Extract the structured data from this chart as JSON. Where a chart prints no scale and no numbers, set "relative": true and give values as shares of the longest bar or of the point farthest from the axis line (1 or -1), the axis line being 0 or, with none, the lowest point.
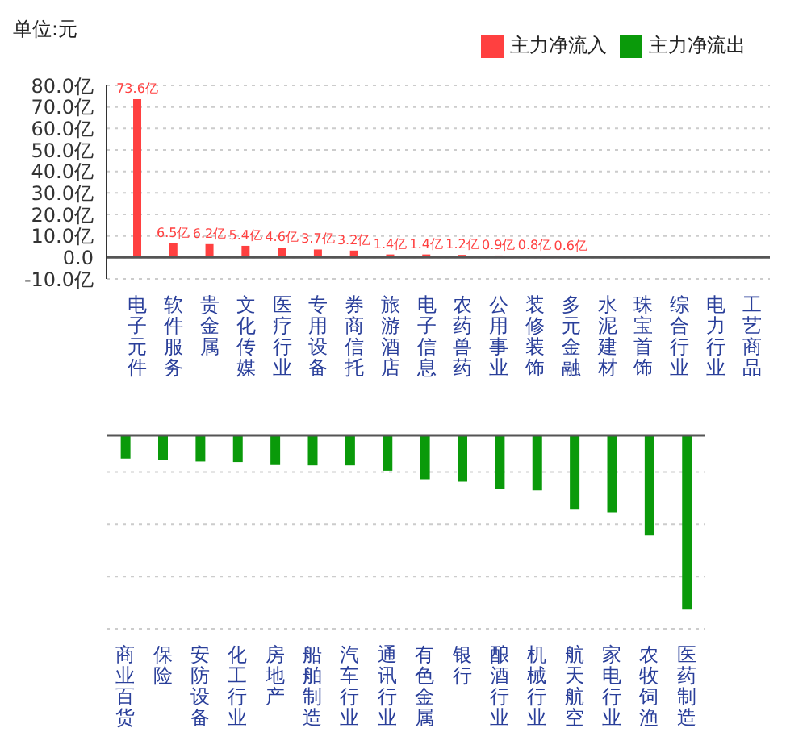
{
  "chart_data": [
    {
      "type": "bar",
      "annotations": [
        "单位:元"
      ],
      "categories": [
        "电子元件",
        "软件服务",
        "贵金属",
        "文化传媒",
        "医疗行业",
        "专用设备",
        "券商信托",
        "旅游酒店",
        "电子信息",
        "农药兽药",
        "公用事业",
        "装修装饰",
        "多元金融",
        "水泥建材",
        "珠宝首饰",
        "综合行业",
        "电力行业",
        "工艺商品"
      ],
      "series": [
        {
          "name": "主力净流入",
          "color": "#ff4040",
          "values": [
            73.6,
            6.5,
            6.2,
            5.4,
            4.6,
            3.7,
            3.2,
            1.4,
            1.4,
            1.2,
            0.9,
            0.8,
            0.6,
            null,
            null,
            0,
            0,
            0
          ],
          "value_labels": [
            "73.6亿",
            "6.5亿",
            "6.2亿",
            "5.4亿",
            "4.6亿",
            "3.7亿",
            "3.2亿",
            "1.4亿",
            "1.4亿",
            "1.2亿",
            "0.9亿",
            "0.8亿",
            "0.6亿",
            null,
            null,
            null,
            null,
            null
          ]
        }
      ],
      "ylim": [
        -10,
        80
      ],
      "yticks": [
        {
          "value": 80,
          "label": "80.0亿"
        },
        {
          "value": 70,
          "label": "70.0亿"
        },
        {
          "value": 60,
          "label": "60.0亿"
        },
        {
          "value": 50,
          "label": "50.0亿"
        },
        {
          "value": 40,
          "label": "40.0亿"
        },
        {
          "value": 30,
          "label": "30.0亿"
        },
        {
          "value": 20,
          "label": "20.0亿"
        },
        {
          "value": 10,
          "label": "10.0亿"
        },
        {
          "value": 0,
          "label": "0.0"
        },
        {
          "value": -10,
          "label": "-10.0亿"
        }
      ],
      "grid": "y",
      "legend": "top right"
    },
    {
      "type": "bar",
      "relative": true,
      "categories": [
        "商业百货",
        "保险",
        "安防设备",
        "化工行业",
        "房地产",
        "船舶制造",
        "汽车行业",
        "通讯行业",
        "有色金属",
        "银行",
        "酿酒行业",
        "机械行业",
        "航天航空",
        "家电行业",
        "农牧饲渔",
        "医药制造"
      ],
      "series": [
        {
          "name": "主力净流出",
          "color": "#0a9a0a",
          "values": [
            -0.133,
            -0.143,
            -0.15,
            -0.153,
            -0.17,
            -0.172,
            -0.172,
            -0.203,
            -0.252,
            -0.266,
            -0.309,
            -0.316,
            -0.422,
            -0.442,
            -0.575,
            -1
          ]
        }
      ],
      "grid": true,
      "legend": "top right"
    }
  ]
}
